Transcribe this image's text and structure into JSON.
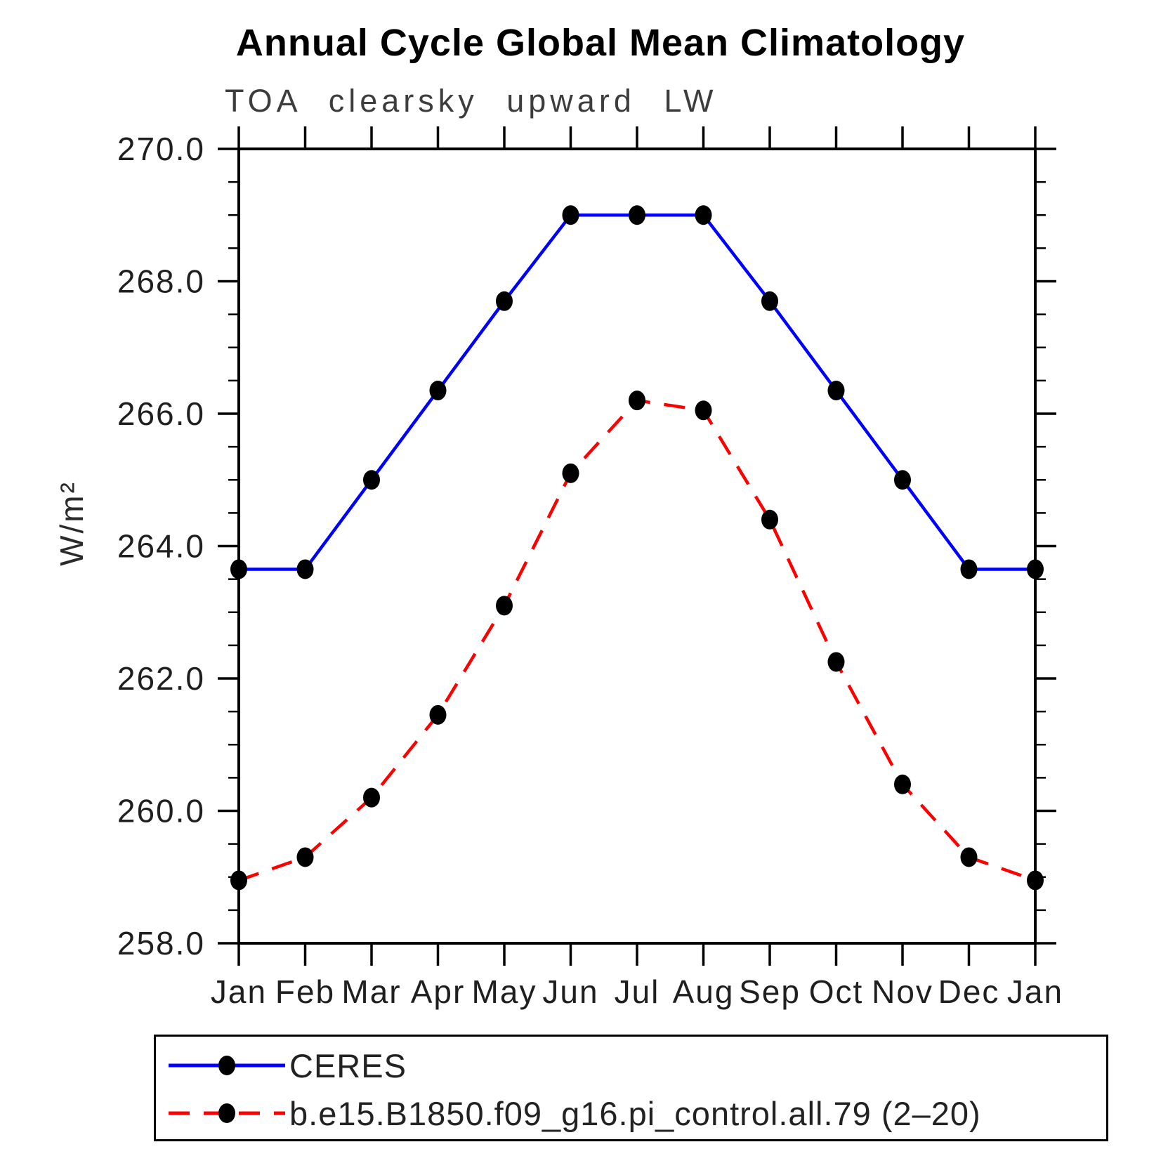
{
  "page": {
    "title": "Annual Cycle Global Mean Climatology",
    "subtitle": "TOA clearsky upward LW"
  },
  "chart_data": {
    "type": "line",
    "title": "Annual Cycle Global Mean Climatology",
    "subtitle": "TOA clearsky upward LW",
    "ylabel": "W/m²",
    "categories": [
      "Jan",
      "Feb",
      "Mar",
      "Apr",
      "May",
      "Jun",
      "Jul",
      "Aug",
      "Sep",
      "Oct",
      "Nov",
      "Dec",
      "Jan"
    ],
    "ylim": [
      258.0,
      270.0
    ],
    "ytick_values": [
      258,
      260,
      262,
      264,
      266,
      268,
      270
    ],
    "ytick_labels": [
      "258.0",
      "260.0",
      "262.0",
      "264.0",
      "266.0",
      "268.0",
      "270.0"
    ],
    "minor_tick_step": 0.5,
    "grid": "off",
    "legend_position": "bottom-left-box",
    "marker": {
      "shape": "filled-circle",
      "color": "#000000"
    },
    "series": [
      {
        "name": "CERES",
        "color": "#0000ff",
        "line_style": "solid",
        "values": [
          263.65,
          263.65,
          265.0,
          266.35,
          267.7,
          269.0,
          269.0,
          269.0,
          267.7,
          266.35,
          265.0,
          263.65,
          263.65
        ]
      },
      {
        "name": "b.e15.B1850.f09_g16.pi_control.all.79 (2–20)",
        "color": "#ff0000",
        "line_style": "dashed",
        "values": [
          258.95,
          259.3,
          260.2,
          261.45,
          263.1,
          265.1,
          266.2,
          266.05,
          264.4,
          262.25,
          260.4,
          259.3,
          258.95
        ]
      }
    ]
  }
}
